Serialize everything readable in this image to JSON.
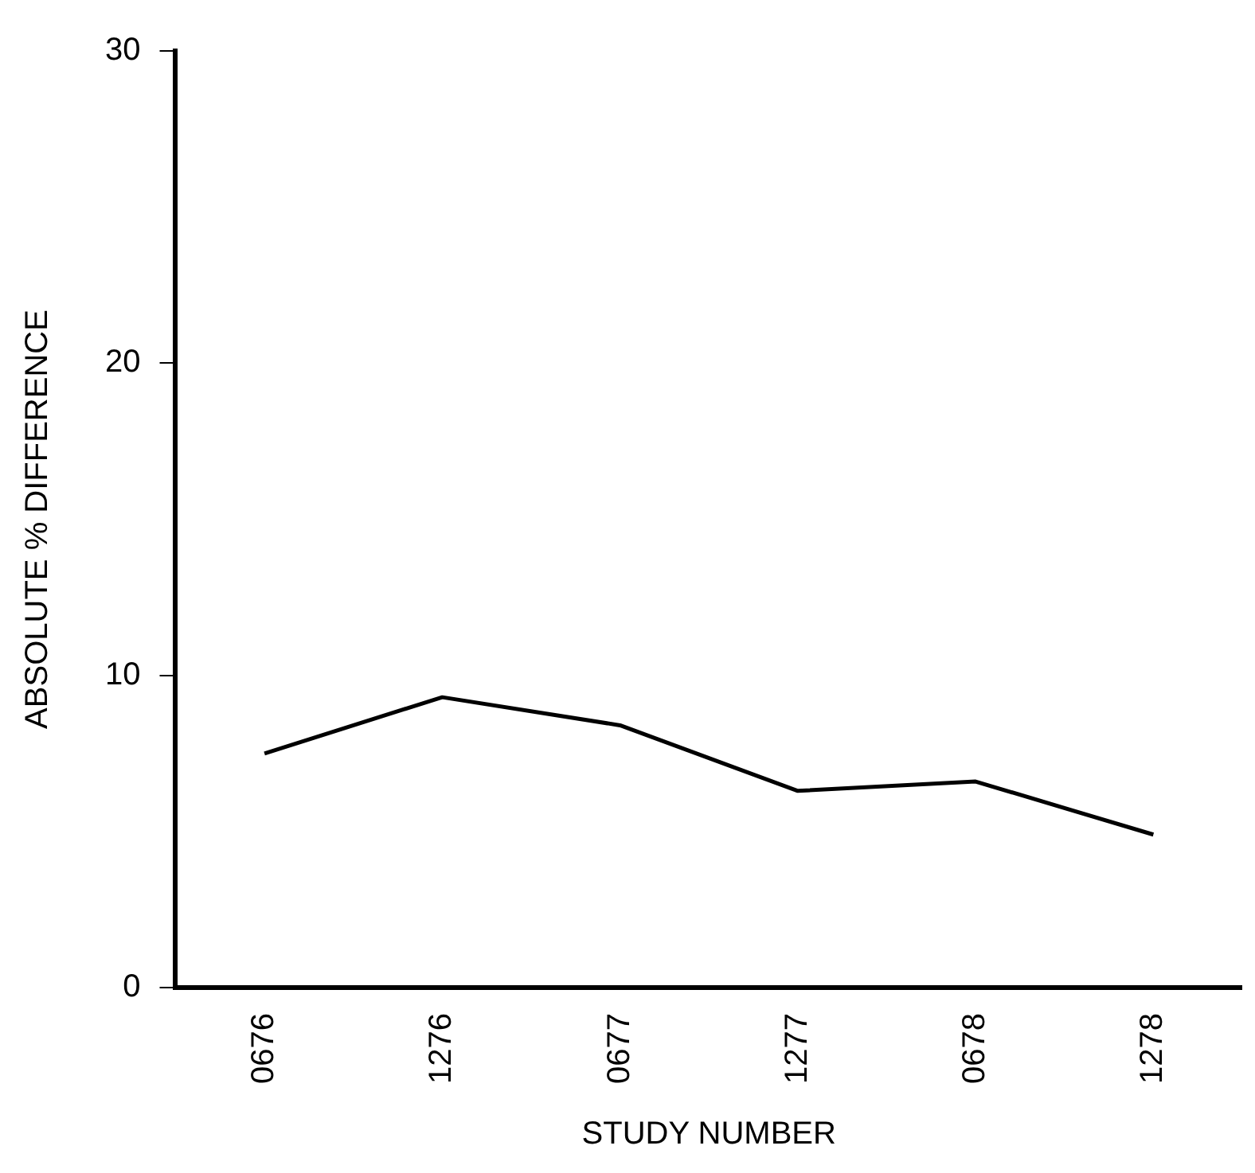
{
  "chart_data": {
    "type": "line",
    "xlabel": "STUDY NUMBER",
    "ylabel": "ABSOLUTE % DIFFERENCE",
    "categories": [
      "0676",
      "1276",
      "0677",
      "1277",
      "0678",
      "1278"
    ],
    "series": [
      {
        "color": "#000000",
        "values": [
          7.5,
          9.3,
          8.4,
          6.3,
          6.6,
          4.9
        ]
      }
    ],
    "ylim": [
      0,
      30
    ],
    "yticks": [
      0,
      10,
      20,
      30
    ],
    "grid": false,
    "legend": false,
    "marker": "none",
    "line_style": "solid"
  }
}
